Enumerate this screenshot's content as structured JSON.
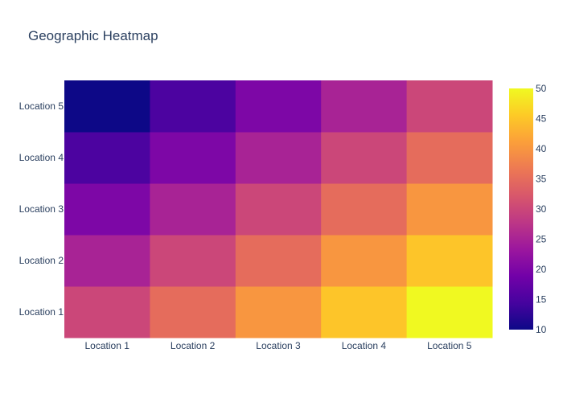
{
  "chart_data": {
    "type": "heatmap",
    "title": "Geographic Heatmap",
    "x_categories": [
      "Location 1",
      "Location 2",
      "Location 3",
      "Location 4",
      "Location 5"
    ],
    "y_categories": [
      "Location 1",
      "Location 2",
      "Location 3",
      "Location 4",
      "Location 5"
    ],
    "z": [
      [
        30,
        35,
        40,
        45,
        50
      ],
      [
        25,
        30,
        35,
        40,
        45
      ],
      [
        20,
        25,
        30,
        35,
        40
      ],
      [
        15,
        20,
        25,
        30,
        35
      ],
      [
        10,
        15,
        20,
        25,
        30
      ]
    ],
    "zlim": [
      10,
      50
    ],
    "colorscale": "plasma",
    "colorbar_ticks": [
      10,
      15,
      20,
      25,
      30,
      35,
      40,
      45,
      50
    ],
    "colorscale_stops": [
      "#0d0887",
      "#46039f",
      "#7201a8",
      "#9c179e",
      "#bd3786",
      "#d8576b",
      "#ed7953",
      "#fb9f3a",
      "#fdca26",
      "#f0f921"
    ],
    "xlabel": "",
    "ylabel": "",
    "grid": false
  }
}
